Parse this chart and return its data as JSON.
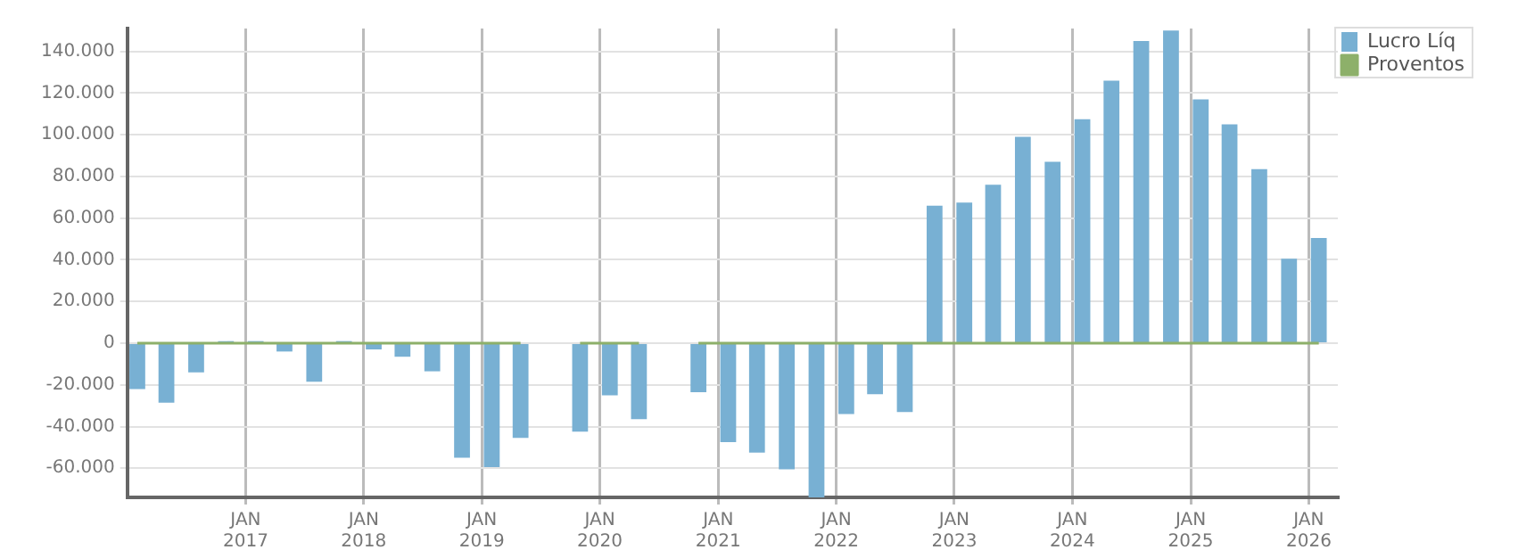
{
  "chart_data": {
    "type": "bar",
    "x": [
      "2016-02",
      "2016-05",
      "2016-08",
      "2016-11",
      "2017-02",
      "2017-05",
      "2017-08",
      "2017-11",
      "2018-02",
      "2018-05",
      "2018-08",
      "2018-11",
      "2019-02",
      "2019-05",
      "2019-08",
      "2019-11",
      "2020-02",
      "2020-05",
      "2020-08",
      "2020-11",
      "2021-02",
      "2021-05",
      "2021-08",
      "2021-11",
      "2022-02",
      "2022-05",
      "2022-08",
      "2022-11",
      "2023-02",
      "2023-05",
      "2023-08",
      "2023-11",
      "2024-02",
      "2024-05",
      "2024-08",
      "2024-11",
      "2025-02",
      "2025-05",
      "2025-08",
      "2025-11",
      "2026-02"
    ],
    "series": [
      {
        "name": "Lucro Líq",
        "color": "#78b0d3",
        "values": [
          -22000,
          -28500,
          -14000,
          1000,
          1000,
          -4000,
          -18500,
          1000,
          -3000,
          -6500,
          -13500,
          -55000,
          -59500,
          -45500,
          null,
          -42500,
          -25000,
          -36500,
          null,
          -23500,
          -47500,
          -52500,
          -60500,
          -74000,
          -34000,
          -24500,
          -33000,
          66000,
          67500,
          76000,
          99000,
          87000,
          107500,
          126000,
          145000,
          150000,
          117000,
          105000,
          83500,
          40500,
          50500
        ]
      },
      {
        "name": "Proventos",
        "type": "line",
        "color": "#8db06a",
        "values": [
          0,
          0,
          0,
          0,
          0,
          0,
          0,
          0,
          0,
          0,
          0,
          0,
          0,
          0,
          null,
          0,
          0,
          0,
          null,
          0,
          0,
          0,
          0,
          0,
          0,
          0,
          0,
          0,
          0,
          0,
          0,
          0,
          0,
          0,
          0,
          0,
          0,
          0,
          0,
          0,
          0
        ]
      }
    ],
    "xlim": [
      "2016-01",
      "2026-04"
    ],
    "xticks": [
      {
        "value": "2017-01",
        "label": "JAN 2017"
      },
      {
        "value": "2018-01",
        "label": "JAN 2018"
      },
      {
        "value": "2019-01",
        "label": "JAN 2019"
      },
      {
        "value": "2020-01",
        "label": "JAN 2020"
      },
      {
        "value": "2021-01",
        "label": "JAN 2021"
      },
      {
        "value": "2022-01",
        "label": "JAN 2022"
      },
      {
        "value": "2023-01",
        "label": "JAN 2023"
      },
      {
        "value": "2024-01",
        "label": "JAN 2024"
      },
      {
        "value": "2025-01",
        "label": "JAN 2025"
      },
      {
        "value": "2026-01",
        "label": "JAN 2026"
      }
    ],
    "ylim": [
      -74000,
      151000
    ],
    "yticks": [
      {
        "value": -60000,
        "label": "-60.000"
      },
      {
        "value": -40000,
        "label": "-40.000"
      },
      {
        "value": -20000,
        "label": "-20.000"
      },
      {
        "value": 0,
        "label": "0"
      },
      {
        "value": 20000,
        "label": "20.000"
      },
      {
        "value": 40000,
        "label": "40.000"
      },
      {
        "value": 60000,
        "label": "60.000"
      },
      {
        "value": 80000,
        "label": "80.000"
      },
      {
        "value": 100000,
        "label": "100.000"
      },
      {
        "value": 120000,
        "label": "120.000"
      },
      {
        "value": 140000,
        "label": "140.000"
      }
    ],
    "grid": true,
    "legend": "top right",
    "marker": "none"
  }
}
